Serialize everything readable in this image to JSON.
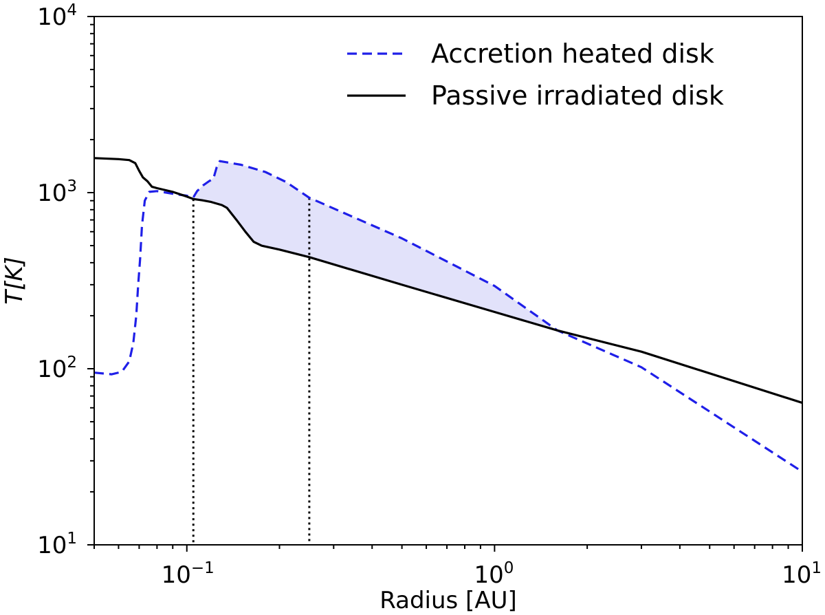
{
  "chart_data": {
    "type": "line",
    "scale": {
      "x": "log",
      "y": "log"
    },
    "xlim": [
      0.05,
      10
    ],
    "ylim": [
      10,
      10000
    ],
    "xlabel": "Radius [AU]",
    "ylabel": "T[K]",
    "grid": false,
    "legend_position": "top-right",
    "x_ticks": [
      {
        "value": 0.1,
        "base": "10",
        "exp": "−1"
      },
      {
        "value": 1,
        "base": "10",
        "exp": "0"
      },
      {
        "value": 10,
        "base": "10",
        "exp": "1"
      }
    ],
    "y_ticks": [
      {
        "value": 10,
        "base": "10",
        "exp": "1"
      },
      {
        "value": 100,
        "base": "10",
        "exp": "2"
      },
      {
        "value": 1000,
        "base": "10",
        "exp": "3"
      },
      {
        "value": 10000,
        "base": "10",
        "exp": "4"
      }
    ],
    "series": [
      {
        "name": "Accretion heated disk",
        "style": "dashed",
        "color": "#1f1fe8",
        "points": [
          [
            0.05,
            95
          ],
          [
            0.057,
            93
          ],
          [
            0.0615,
            96
          ],
          [
            0.065,
            110
          ],
          [
            0.067,
            140
          ],
          [
            0.0685,
            200
          ],
          [
            0.0695,
            300
          ],
          [
            0.0705,
            420
          ],
          [
            0.0715,
            650
          ],
          [
            0.073,
            900
          ],
          [
            0.0755,
            1010
          ],
          [
            0.08,
            1020
          ],
          [
            0.09,
            985
          ],
          [
            0.1,
            960
          ],
          [
            0.105,
            940
          ],
          [
            0.108,
            1020
          ],
          [
            0.113,
            1100
          ],
          [
            0.118,
            1160
          ],
          [
            0.122,
            1200
          ],
          [
            0.125,
            1390
          ],
          [
            0.128,
            1510
          ],
          [
            0.15,
            1440
          ],
          [
            0.18,
            1310
          ],
          [
            0.21,
            1150
          ],
          [
            0.25,
            935
          ],
          [
            0.5,
            550
          ],
          [
            1,
            295
          ],
          [
            1.6,
            165
          ],
          [
            3,
            102
          ],
          [
            10,
            26
          ]
        ]
      },
      {
        "name": "Passive irradiated disk",
        "style": "solid",
        "color": "#000000",
        "points": [
          [
            0.05,
            1570
          ],
          [
            0.06,
            1550
          ],
          [
            0.065,
            1530
          ],
          [
            0.068,
            1470
          ],
          [
            0.07,
            1330
          ],
          [
            0.072,
            1220
          ],
          [
            0.0745,
            1160
          ],
          [
            0.077,
            1080
          ],
          [
            0.08,
            1060
          ],
          [
            0.09,
            1010
          ],
          [
            0.1,
            950
          ],
          [
            0.105,
            920
          ],
          [
            0.112,
            905
          ],
          [
            0.12,
            885
          ],
          [
            0.13,
            850
          ],
          [
            0.135,
            820
          ],
          [
            0.145,
            700
          ],
          [
            0.155,
            600
          ],
          [
            0.165,
            525
          ],
          [
            0.175,
            500
          ],
          [
            0.2,
            475
          ],
          [
            0.25,
            430
          ],
          [
            0.5,
            300
          ],
          [
            1,
            210
          ],
          [
            1.6,
            165
          ],
          [
            3,
            125
          ],
          [
            10,
            64
          ]
        ]
      }
    ],
    "fill_between": {
      "from_series": "Passive irradiated disk",
      "to_series": "Accretion heated disk",
      "x_range": [
        0.103,
        1.6
      ],
      "color": "#e2e2fa"
    },
    "vertical_lines": [
      {
        "x": 0.105,
        "y_top": 920,
        "style": "dotted",
        "color": "#000000"
      },
      {
        "x": 0.25,
        "y_top": 935,
        "style": "dotted",
        "color": "#000000"
      }
    ]
  }
}
